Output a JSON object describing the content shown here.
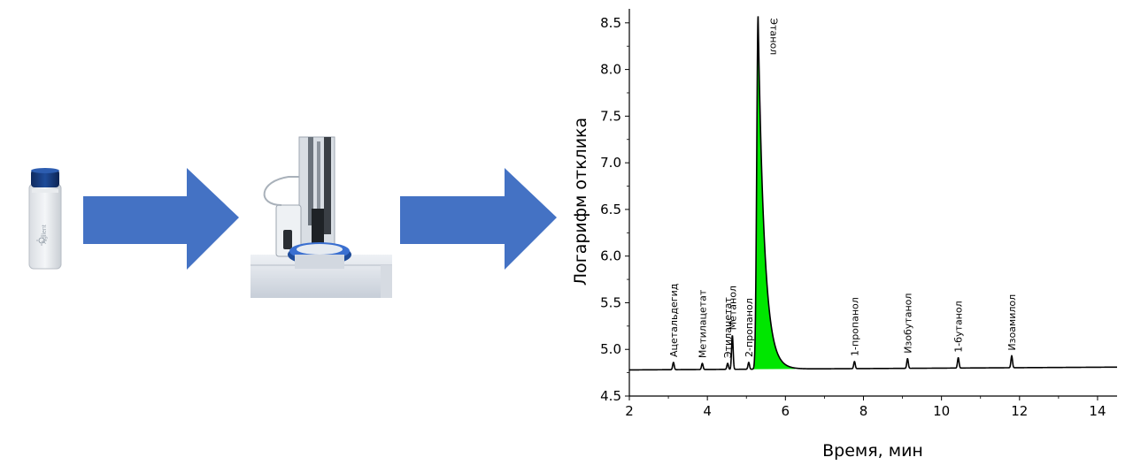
{
  "pipeline": {
    "vial_icon": "sample-vial",
    "instrument_icon": "gc-autosampler",
    "arrow_color": "#4472C4",
    "vial_brand": "Agilent"
  },
  "chart_data": {
    "type": "line",
    "title": "",
    "xlabel": "Время, мин",
    "ylabel": "Логарифм отклика",
    "xlim": [
      2,
      14.5
    ],
    "ylim": [
      4.5,
      8.65
    ],
    "xticks": [
      2,
      4,
      6,
      8,
      10,
      12,
      14
    ],
    "yticks": [
      4.5,
      5.0,
      5.5,
      6.0,
      6.5,
      7.0,
      7.5,
      8.0,
      8.5
    ],
    "ytick_labels": [
      "4.5",
      "5.0",
      "5.5",
      "6.0",
      "6.5",
      "7.0",
      "7.5",
      "8.0",
      "8.5"
    ],
    "baseline": {
      "start": 4.78,
      "end": 4.81
    },
    "highlight_color": "#00E600",
    "line_color": "#000000",
    "peaks": [
      {
        "label": "Ацетальдегид",
        "x": 3.13,
        "y": 4.86
      },
      {
        "label": "Метилацетат",
        "x": 3.87,
        "y": 4.85
      },
      {
        "label": "Этилацетат",
        "x": 4.52,
        "y": 4.85
      },
      {
        "label": "Метанол",
        "x": 4.64,
        "y": 5.15
      },
      {
        "label": "2-пропанол",
        "x": 5.06,
        "y": 4.86
      },
      {
        "label": "Этанол",
        "x": 5.3,
        "y": 8.57,
        "highlighted": true
      },
      {
        "label": "1-пропанол",
        "x": 7.77,
        "y": 4.87
      },
      {
        "label": "Изобутанол",
        "x": 9.13,
        "y": 4.9
      },
      {
        "label": "1-бутанол",
        "x": 10.43,
        "y": 4.91
      },
      {
        "label": "Изоамилол",
        "x": 11.8,
        "y": 4.93
      }
    ]
  }
}
